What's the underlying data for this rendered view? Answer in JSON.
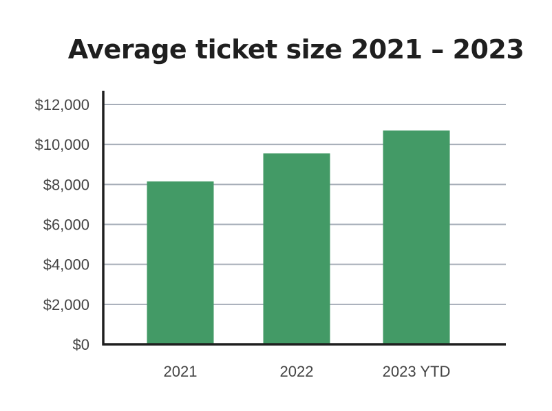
{
  "chart_data": {
    "type": "bar",
    "title": "Average ticket size 2021 – 2023",
    "xlabel": "",
    "ylabel": "",
    "categories": [
      "2021",
      "2022",
      "2023 YTD"
    ],
    "values": [
      8150,
      9550,
      10700
    ],
    "ylim": [
      0,
      12000
    ],
    "yticks": [
      0,
      2000,
      4000,
      6000,
      8000,
      10000,
      12000
    ],
    "ytick_labels": [
      "$0",
      "$2,000",
      "$4,000",
      "$6,000",
      "$8,000",
      "$10,000",
      "$12,000"
    ],
    "grid": true,
    "legend": "none",
    "colors": {
      "bar": "#439a66",
      "grid": "#a6adb8",
      "axis": "#1f1f1f",
      "text": "#444444"
    }
  }
}
